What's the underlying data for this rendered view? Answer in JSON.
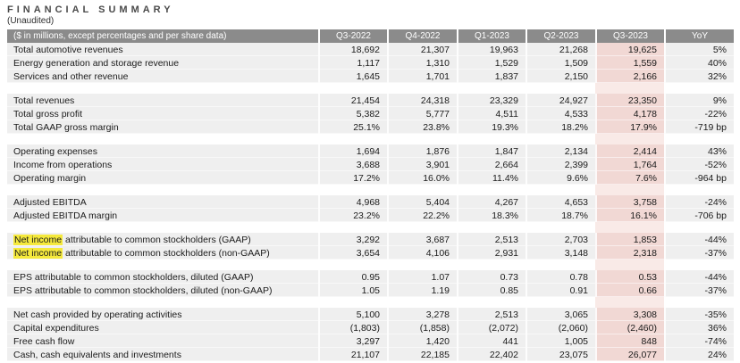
{
  "page": {
    "title": "FINANCIAL SUMMARY",
    "subtitle": "(Unaudited)"
  },
  "colors": {
    "header_bg": "#8b8b8b",
    "header_text": "#ffffff",
    "row_bg": "#efefef",
    "highlight_column_bg": "#f1d8d4",
    "highlight_column_gap_bg": "#f9eae7",
    "yellow_highlight": "#f5e93c"
  },
  "table": {
    "label_header": "($ in millions, except percentages and per share data)",
    "columns": [
      "Q3-2022",
      "Q4-2022",
      "Q1-2023",
      "Q2-2023",
      "Q3-2023",
      "YoY"
    ],
    "highlighted_column": "Q3-2023",
    "sections": [
      {
        "rows": [
          {
            "label": "Total automotive revenues",
            "values": [
              "18,692",
              "21,307",
              "19,963",
              "21,268",
              "19,625",
              "5%"
            ]
          },
          {
            "label": "Energy generation and storage revenue",
            "values": [
              "1,117",
              "1,310",
              "1,529",
              "1,509",
              "1,559",
              "40%"
            ]
          },
          {
            "label": "Services and other revenue",
            "values": [
              "1,645",
              "1,701",
              "1,837",
              "2,150",
              "2,166",
              "32%"
            ]
          }
        ]
      },
      {
        "rows": [
          {
            "label": "Total revenues",
            "values": [
              "21,454",
              "24,318",
              "23,329",
              "24,927",
              "23,350",
              "9%"
            ]
          },
          {
            "label": "Total gross profit",
            "values": [
              "5,382",
              "5,777",
              "4,511",
              "4,533",
              "4,178",
              "-22%"
            ]
          },
          {
            "label": "Total GAAP gross margin",
            "values": [
              "25.1%",
              "23.8%",
              "19.3%",
              "18.2%",
              "17.9%",
              "-719 bp"
            ]
          }
        ]
      },
      {
        "rows": [
          {
            "label": "Operating expenses",
            "values": [
              "1,694",
              "1,876",
              "1,847",
              "2,134",
              "2,414",
              "43%"
            ]
          },
          {
            "label": "Income from operations",
            "values": [
              "3,688",
              "3,901",
              "2,664",
              "2,399",
              "1,764",
              "-52%"
            ]
          },
          {
            "label": "Operating margin",
            "values": [
              "17.2%",
              "16.0%",
              "11.4%",
              "9.6%",
              "7.6%",
              "-964 bp"
            ]
          }
        ]
      },
      {
        "rows": [
          {
            "label": "Adjusted EBITDA",
            "values": [
              "4,968",
              "5,404",
              "4,267",
              "4,653",
              "3,758",
              "-24%"
            ]
          },
          {
            "label": "Adjusted EBITDA margin",
            "values": [
              "23.2%",
              "22.2%",
              "18.3%",
              "18.7%",
              "16.1%",
              "-706 bp"
            ]
          }
        ]
      },
      {
        "rows": [
          {
            "label_hl": "Net income",
            "label": " attributable to common stockholders (GAAP)",
            "values": [
              "3,292",
              "3,687",
              "2,513",
              "2,703",
              "1,853",
              "-44%"
            ]
          },
          {
            "label_hl": "Net income",
            "label": " attributable to common stockholders (non-GAAP)",
            "values": [
              "3,654",
              "4,106",
              "2,931",
              "3,148",
              "2,318",
              "-37%"
            ]
          }
        ]
      },
      {
        "rows": [
          {
            "label": "EPS attributable to common stockholders, diluted (GAAP)",
            "values": [
              "0.95",
              "1.07",
              "0.73",
              "0.78",
              "0.53",
              "-44%"
            ]
          },
          {
            "label": "EPS attributable to common stockholders, diluted (non-GAAP)",
            "values": [
              "1.05",
              "1.19",
              "0.85",
              "0.91",
              "0.66",
              "-37%"
            ]
          }
        ]
      },
      {
        "rows": [
          {
            "label": "Net cash provided by operating activities",
            "values": [
              "5,100",
              "3,278",
              "2,513",
              "3,065",
              "3,308",
              "-35%"
            ]
          },
          {
            "label": "Capital expenditures",
            "values": [
              "(1,803)",
              "(1,858)",
              "(2,072)",
              "(2,060)",
              "(2,460)",
              "36%"
            ]
          },
          {
            "label": "Free cash flow",
            "values": [
              "3,297",
              "1,420",
              "441",
              "1,005",
              "848",
              "-74%"
            ]
          },
          {
            "label": "Cash, cash equivalents and investments",
            "values": [
              "21,107",
              "22,185",
              "22,402",
              "23,075",
              "26,077",
              "24%"
            ]
          }
        ]
      }
    ]
  }
}
